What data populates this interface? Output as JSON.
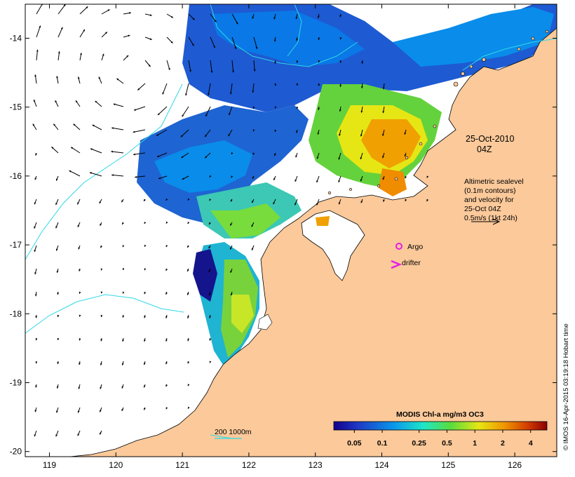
{
  "map": {
    "lon_ticks": [
      "119",
      "120",
      "121",
      "122",
      "123",
      "124",
      "125",
      "126"
    ],
    "lat_ticks": [
      "-14",
      "-15",
      "-16",
      "-17",
      "-18",
      "-19",
      "-20"
    ],
    "colors": {
      "land": "#fbc99a",
      "ocean_nodata": "#ffffff",
      "coast": "#000000",
      "contour": "#2fd8e8",
      "arrow": "#000000",
      "marker": "#e61ee6"
    }
  },
  "annotations": {
    "date": "25-Oct-2010",
    "time": "04Z",
    "info_lines": [
      "Altimetric sealevel",
      "(0.1m contours)",
      "and velocity for",
      "25-Oct 04Z",
      "0.5m/s (1kt 24h)"
    ],
    "argo_label": "Argo",
    "drifter_label": "drifter",
    "depth_label": "200  1000m"
  },
  "legend": {
    "title": "MODIS Chl-a mg/m3 OC3",
    "ticks": [
      "0.05",
      "0.1",
      "0.25",
      "0.5",
      "1",
      "2",
      "4"
    ],
    "values": [
      0.05,
      0.1,
      0.25,
      0.5,
      1,
      2,
      4
    ],
    "range": [
      0.03,
      6
    ],
    "scale": "log",
    "colormap": [
      "#14008c",
      "#1e3cc8",
      "#0a96ea",
      "#1ee6c8",
      "#5adc3c",
      "#e6e614",
      "#f09600",
      "#d23c00",
      "#8c0000"
    ]
  },
  "credit": "© IMOS 16-Apr-2015 03:19:18 Hobart time"
}
